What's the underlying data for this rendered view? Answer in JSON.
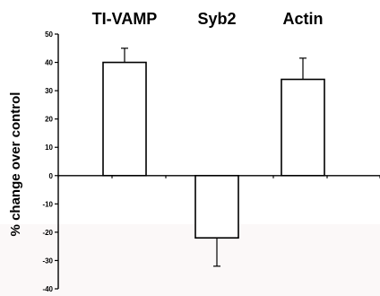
{
  "chart_data": {
    "type": "bar",
    "categories": [
      "TI-VAMP",
      "Syb2",
      "Actin"
    ],
    "values": [
      40,
      -22,
      34
    ],
    "errors": [
      5,
      10,
      7.5
    ],
    "ylabel": "% change over control",
    "ylim": [
      -40,
      50
    ],
    "yticks": [
      -40,
      -30,
      -20,
      -10,
      0,
      10,
      20,
      30,
      40,
      50
    ],
    "bar_fill": "#ffffff",
    "bar_stroke": "#000000",
    "background_lower": "#fbf8f8"
  }
}
